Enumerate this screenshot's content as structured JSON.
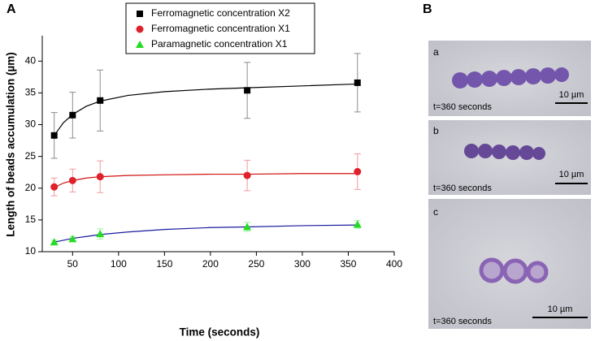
{
  "chart_data": {
    "type": "scatter",
    "xlabel": "Time (seconds)",
    "ylabel": "Length of beads accumulation (µm)",
    "x": [
      30,
      50,
      80,
      240,
      360
    ],
    "xlim": [
      17,
      400
    ],
    "xticks": [
      50,
      100,
      150,
      200,
      250,
      300,
      350,
      400
    ],
    "ylim": [
      10,
      44
    ],
    "yticks": [
      10,
      15,
      20,
      25,
      30,
      35,
      40
    ],
    "legend": "top",
    "fit_x": [
      30,
      40,
      50,
      65,
      80,
      110,
      150,
      200,
      240,
      300,
      360
    ],
    "series": [
      {
        "name": "Ferromagnetic concentration X2",
        "color": "#000000",
        "fit_color": "#000000",
        "marker": "square",
        "values": [
          28.3,
          31.5,
          33.8,
          35.4,
          36.6
        ],
        "errors": [
          3.6,
          3.6,
          4.8,
          4.4,
          4.6
        ],
        "fit": [
          28.3,
          30.3,
          31.6,
          32.9,
          33.7,
          34.6,
          35.2,
          35.6,
          35.8,
          36.1,
          36.4
        ]
      },
      {
        "name": "Ferromagnetic concentration X1",
        "color": "#e0202a",
        "fit_color": "#d01010",
        "marker": "circle",
        "values": [
          20.2,
          21.2,
          21.8,
          22.0,
          22.6
        ],
        "errors": [
          1.4,
          1.8,
          2.5,
          2.4,
          2.8
        ],
        "fit": [
          20.1,
          20.8,
          21.2,
          21.6,
          21.8,
          22.0,
          22.1,
          22.2,
          22.2,
          22.3,
          22.3
        ]
      },
      {
        "name": "Paramagnetic concentration X1",
        "color": "#22dd22",
        "fit_color": "#1a1aa0",
        "marker": "triangle",
        "values": [
          11.5,
          12.0,
          12.8,
          13.9,
          14.3
        ],
        "errors": [
          0.3,
          0.4,
          0.8,
          0.7,
          0.6
        ],
        "fit": [
          11.5,
          11.8,
          12.1,
          12.4,
          12.7,
          13.1,
          13.5,
          13.8,
          13.9,
          14.1,
          14.2
        ]
      }
    ]
  },
  "panel_labels": {
    "a": "A",
    "b": "B"
  },
  "images": [
    {
      "label": "a",
      "caption": "t=360 seconds",
      "scale": "10 µm"
    },
    {
      "label": "b",
      "caption": "t=360 seconds",
      "scale": "10 µm"
    },
    {
      "label": "c",
      "caption": "t=360 seconds",
      "scale": "10 µm"
    }
  ]
}
